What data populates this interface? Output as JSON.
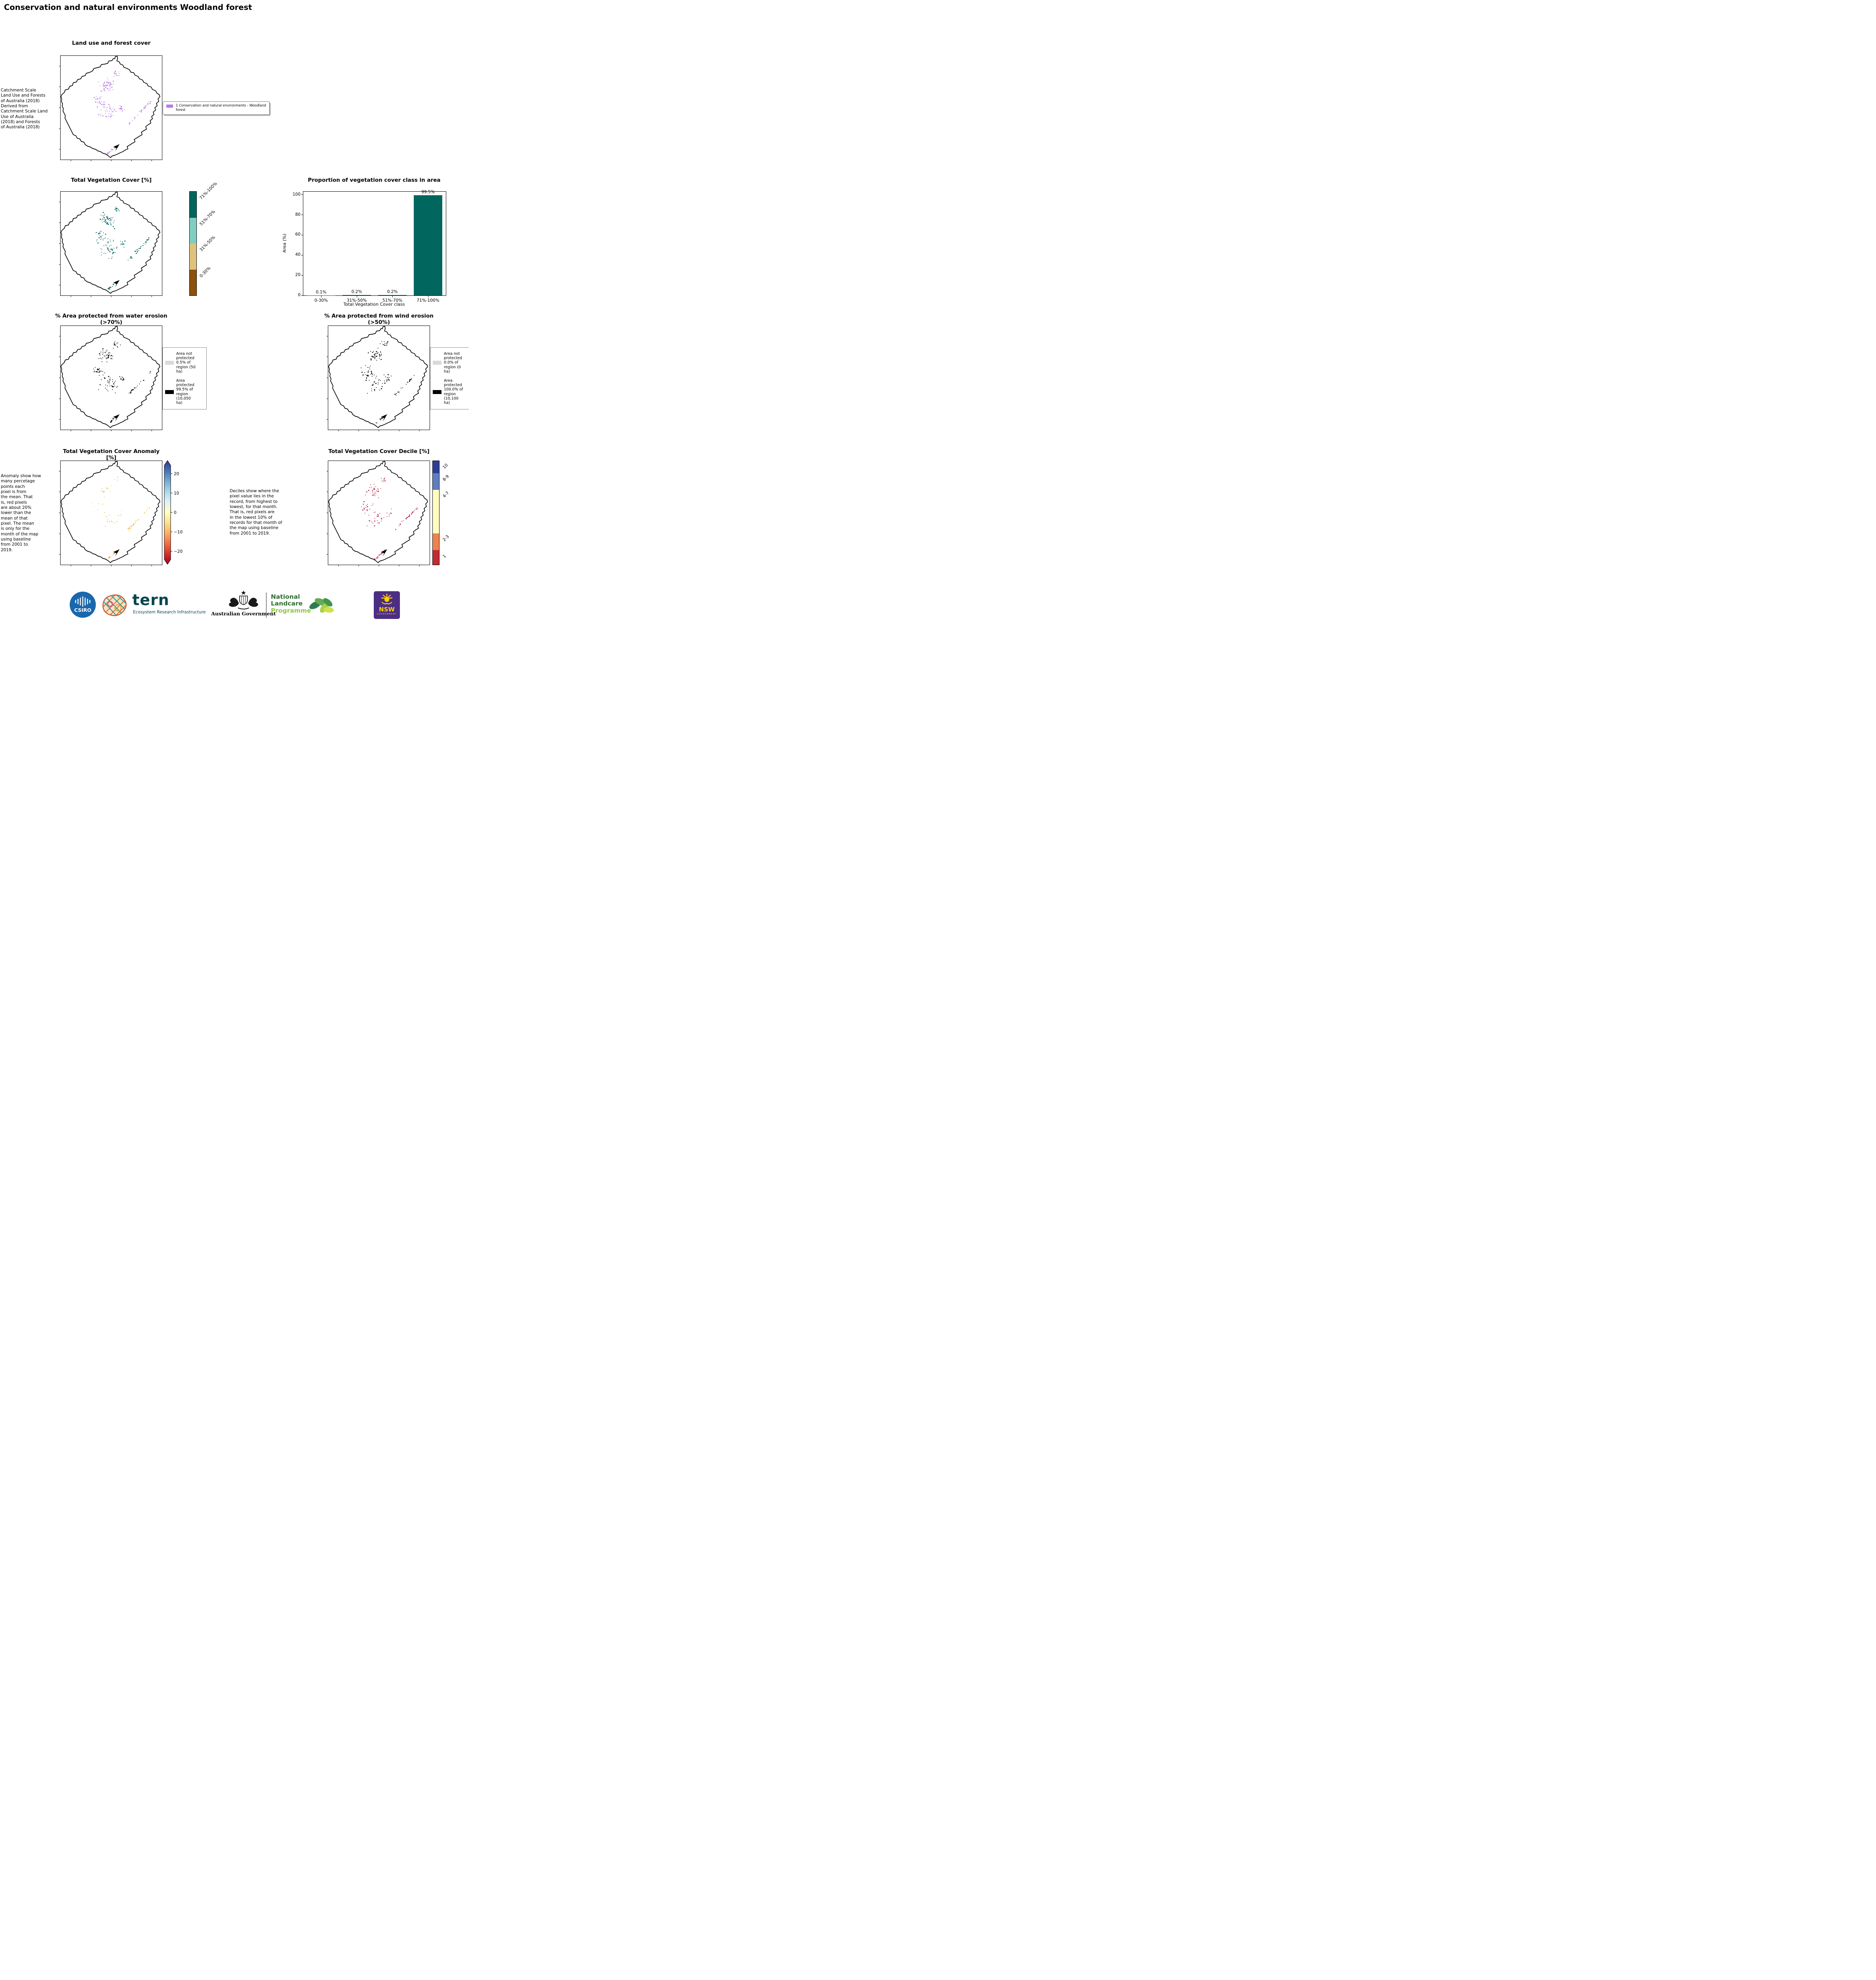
{
  "page": {
    "title": "Conservation and natural environments Woodland forest"
  },
  "panels": {
    "landuse": {
      "title": "Land use and forest cover",
      "caption": " Catchment Scale\nLand Use and Forests\nof Australia (2018)\nDerived from\nCatchment Scale Land\nUse of Australia\n(2018) and Forests\nof Australia (2018)",
      "legend": {
        "label": "1 Conservation and natural environments - Woodland forest",
        "color": "#bd7ae2"
      }
    },
    "veg_cover": {
      "title": "Total Vegetation Cover [%]",
      "classes": [
        {
          "label": "71%-100%",
          "color": "#01665e",
          "frac": 0.25
        },
        {
          "label": "51%-70%",
          "color": "#80cdc1",
          "frac": 0.25
        },
        {
          "label": "31%-50%",
          "color": "#dfc27d",
          "frac": 0.25
        },
        {
          "label": "0-30%",
          "color": "#8c510a",
          "frac": 0.25
        }
      ]
    },
    "water_erosion": {
      "title": "% Area protected from water erosion (>70%)",
      "legend": [
        {
          "label": "Area not\nprotected\n0.5% of\nregion (50\nha)",
          "color": "#d9d9d9"
        },
        {
          "label": "Area\nprotected\n99.5% of\nregion\n(10,050\nha)",
          "color": "#000000"
        }
      ]
    },
    "wind_erosion": {
      "title": "% Area protected from wind erosion (>50%)",
      "legend": [
        {
          "label": "Area not\nprotected\n0.0% of\nregion (0\nha)",
          "color": "#d9d9d9"
        },
        {
          "label": "Area\nprotected\n100.0% of\nregion\n(10,100\nha)",
          "color": "#000000"
        }
      ]
    },
    "anomaly": {
      "title": "Total Vegetation Cover Anomaly [%]",
      "caption": "Anomaly show how\nmany percetage\npoints each\npixel is from\nthe mean. That\nis, red pixels\nare about 20%\nlower than the\nmean of that\npixel. The mean\nis only for the\nmonth of the map\nusing baseline\nfrom 2001 to\n2019.",
      "colorbar": {
        "ticks": [
          {
            "value": 20,
            "label": "20"
          },
          {
            "value": 10,
            "label": "10"
          },
          {
            "value": 0,
            "label": "0"
          },
          {
            "value": -10,
            "label": "−10"
          },
          {
            "value": -20,
            "label": "−20"
          }
        ],
        "gradient_top_to_bottom": [
          "#313695",
          "#4575b4",
          "#74add1",
          "#abd9e9",
          "#e0f3f8",
          "#ffffbf",
          "#fee090",
          "#fdae61",
          "#f46d43",
          "#d73027",
          "#a50026"
        ],
        "dot_colors": [
          "#f6c54d",
          "#ee9037",
          "#f3df6e"
        ]
      }
    },
    "decile": {
      "title": "Total Vegetation Cover Decile [%]",
      "caption": "Deciles show where the\npixel value lies in the\nrecord, from highest to\nlowest, for that month.\nThat is, red pixels are\nin the lowest 10% of\nrecords for that month of\nthe map using baseline\nfrom 2001 to 2019.",
      "classes": [
        {
          "label": "10",
          "color": "#2d3e99",
          "frac": 0.12
        },
        {
          "label": "8-9",
          "color": "#5f7ec1",
          "frac": 0.16
        },
        {
          "label": "4-7",
          "color": "#fffdc0",
          "frac": 0.42
        },
        {
          "label": "2-3",
          "color": "#ee824f",
          "frac": 0.16
        },
        {
          "label": "1",
          "color": "#c32b33",
          "frac": 0.14
        }
      ],
      "dot_color": "#b02647"
    }
  },
  "chart_data": {
    "type": "bar",
    "title": "Proportion of vegetation cover class in area",
    "categories": [
      "0-30%",
      "31%-50%",
      "51%-70%",
      "71%-100%"
    ],
    "values": [
      0.1,
      0.2,
      0.2,
      99.5
    ],
    "value_labels": [
      "0.1%",
      "0.2%",
      "0.2%",
      "99.5%"
    ],
    "xlabel": "Total Vegetation Cover class",
    "ylabel": "Area (%)",
    "ylim": [
      0,
      103
    ],
    "yticks": [
      0,
      20,
      40,
      60,
      80,
      100
    ],
    "bar_color": "#01665e",
    "grid": false,
    "legend_position": "none"
  },
  "footer": {
    "csiro_label": "CSIRO",
    "tern_label": "tern",
    "tern_tagline": "Ecosystem Research Infrastructure",
    "aus_gov_label": "Australian Government",
    "landcare_line1": "National",
    "landcare_line2": "Landcare",
    "landcare_line3": "Programme",
    "nsw_label": "NSW",
    "nsw_sublabel": "GOVERNMENT"
  }
}
